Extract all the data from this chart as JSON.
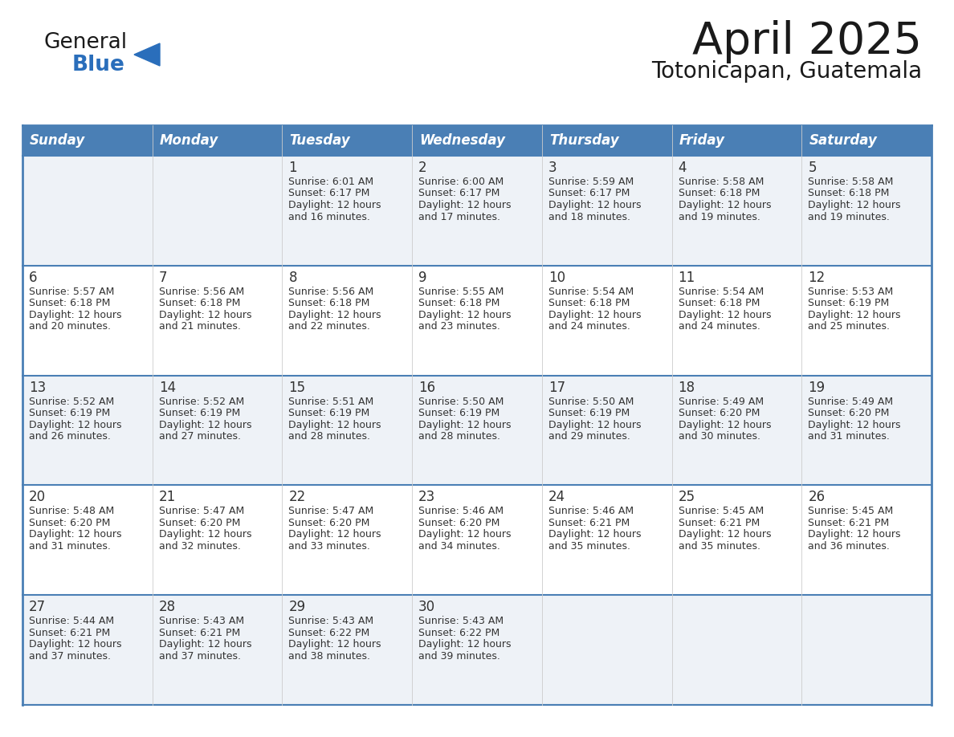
{
  "title": "April 2025",
  "subtitle": "Totonicapan, Guatemala",
  "days_of_week": [
    "Sunday",
    "Monday",
    "Tuesday",
    "Wednesday",
    "Thursday",
    "Friday",
    "Saturday"
  ],
  "header_bg": "#4a7fb5",
  "header_text_color": "#ffffff",
  "cell_bg_odd": "#eef2f7",
  "cell_bg_even": "#ffffff",
  "row_border_color": "#4a7fb5",
  "col_border_color": "#cccccc",
  "text_color": "#333333",
  "title_color": "#1a1a1a",
  "logo_color_general": "#1a1a1a",
  "logo_color_blue": "#2a6ebb",
  "logo_triangle_color": "#2a6ebb",
  "calendar_data": [
    [
      {
        "day": "",
        "sunrise": "",
        "sunset": "",
        "daylight_min": ""
      },
      {
        "day": "",
        "sunrise": "",
        "sunset": "",
        "daylight_min": ""
      },
      {
        "day": "1",
        "sunrise": "6:01 AM",
        "sunset": "6:17 PM",
        "daylight_min": "16 minutes."
      },
      {
        "day": "2",
        "sunrise": "6:00 AM",
        "sunset": "6:17 PM",
        "daylight_min": "17 minutes."
      },
      {
        "day": "3",
        "sunrise": "5:59 AM",
        "sunset": "6:17 PM",
        "daylight_min": "18 minutes."
      },
      {
        "day": "4",
        "sunrise": "5:58 AM",
        "sunset": "6:18 PM",
        "daylight_min": "19 minutes."
      },
      {
        "day": "5",
        "sunrise": "5:58 AM",
        "sunset": "6:18 PM",
        "daylight_min": "19 minutes."
      }
    ],
    [
      {
        "day": "6",
        "sunrise": "5:57 AM",
        "sunset": "6:18 PM",
        "daylight_min": "20 minutes."
      },
      {
        "day": "7",
        "sunrise": "5:56 AM",
        "sunset": "6:18 PM",
        "daylight_min": "21 minutes."
      },
      {
        "day": "8",
        "sunrise": "5:56 AM",
        "sunset": "6:18 PM",
        "daylight_min": "22 minutes."
      },
      {
        "day": "9",
        "sunrise": "5:55 AM",
        "sunset": "6:18 PM",
        "daylight_min": "23 minutes."
      },
      {
        "day": "10",
        "sunrise": "5:54 AM",
        "sunset": "6:18 PM",
        "daylight_min": "24 minutes."
      },
      {
        "day": "11",
        "sunrise": "5:54 AM",
        "sunset": "6:18 PM",
        "daylight_min": "24 minutes."
      },
      {
        "day": "12",
        "sunrise": "5:53 AM",
        "sunset": "6:19 PM",
        "daylight_min": "25 minutes."
      }
    ],
    [
      {
        "day": "13",
        "sunrise": "5:52 AM",
        "sunset": "6:19 PM",
        "daylight_min": "26 minutes."
      },
      {
        "day": "14",
        "sunrise": "5:52 AM",
        "sunset": "6:19 PM",
        "daylight_min": "27 minutes."
      },
      {
        "day": "15",
        "sunrise": "5:51 AM",
        "sunset": "6:19 PM",
        "daylight_min": "28 minutes."
      },
      {
        "day": "16",
        "sunrise": "5:50 AM",
        "sunset": "6:19 PM",
        "daylight_min": "28 minutes."
      },
      {
        "day": "17",
        "sunrise": "5:50 AM",
        "sunset": "6:19 PM",
        "daylight_min": "29 minutes."
      },
      {
        "day": "18",
        "sunrise": "5:49 AM",
        "sunset": "6:20 PM",
        "daylight_min": "30 minutes."
      },
      {
        "day": "19",
        "sunrise": "5:49 AM",
        "sunset": "6:20 PM",
        "daylight_min": "31 minutes."
      }
    ],
    [
      {
        "day": "20",
        "sunrise": "5:48 AM",
        "sunset": "6:20 PM",
        "daylight_min": "31 minutes."
      },
      {
        "day": "21",
        "sunrise": "5:47 AM",
        "sunset": "6:20 PM",
        "daylight_min": "32 minutes."
      },
      {
        "day": "22",
        "sunrise": "5:47 AM",
        "sunset": "6:20 PM",
        "daylight_min": "33 minutes."
      },
      {
        "day": "23",
        "sunrise": "5:46 AM",
        "sunset": "6:20 PM",
        "daylight_min": "34 minutes."
      },
      {
        "day": "24",
        "sunrise": "5:46 AM",
        "sunset": "6:21 PM",
        "daylight_min": "35 minutes."
      },
      {
        "day": "25",
        "sunrise": "5:45 AM",
        "sunset": "6:21 PM",
        "daylight_min": "35 minutes."
      },
      {
        "day": "26",
        "sunrise": "5:45 AM",
        "sunset": "6:21 PM",
        "daylight_min": "36 minutes."
      }
    ],
    [
      {
        "day": "27",
        "sunrise": "5:44 AM",
        "sunset": "6:21 PM",
        "daylight_min": "37 minutes."
      },
      {
        "day": "28",
        "sunrise": "5:43 AM",
        "sunset": "6:21 PM",
        "daylight_min": "37 minutes."
      },
      {
        "day": "29",
        "sunrise": "5:43 AM",
        "sunset": "6:22 PM",
        "daylight_min": "38 minutes."
      },
      {
        "day": "30",
        "sunrise": "5:43 AM",
        "sunset": "6:22 PM",
        "daylight_min": "39 minutes."
      },
      {
        "day": "",
        "sunrise": "",
        "sunset": "",
        "daylight_min": ""
      },
      {
        "day": "",
        "sunrise": "",
        "sunset": "",
        "daylight_min": ""
      },
      {
        "day": "",
        "sunrise": "",
        "sunset": "",
        "daylight_min": ""
      }
    ]
  ]
}
